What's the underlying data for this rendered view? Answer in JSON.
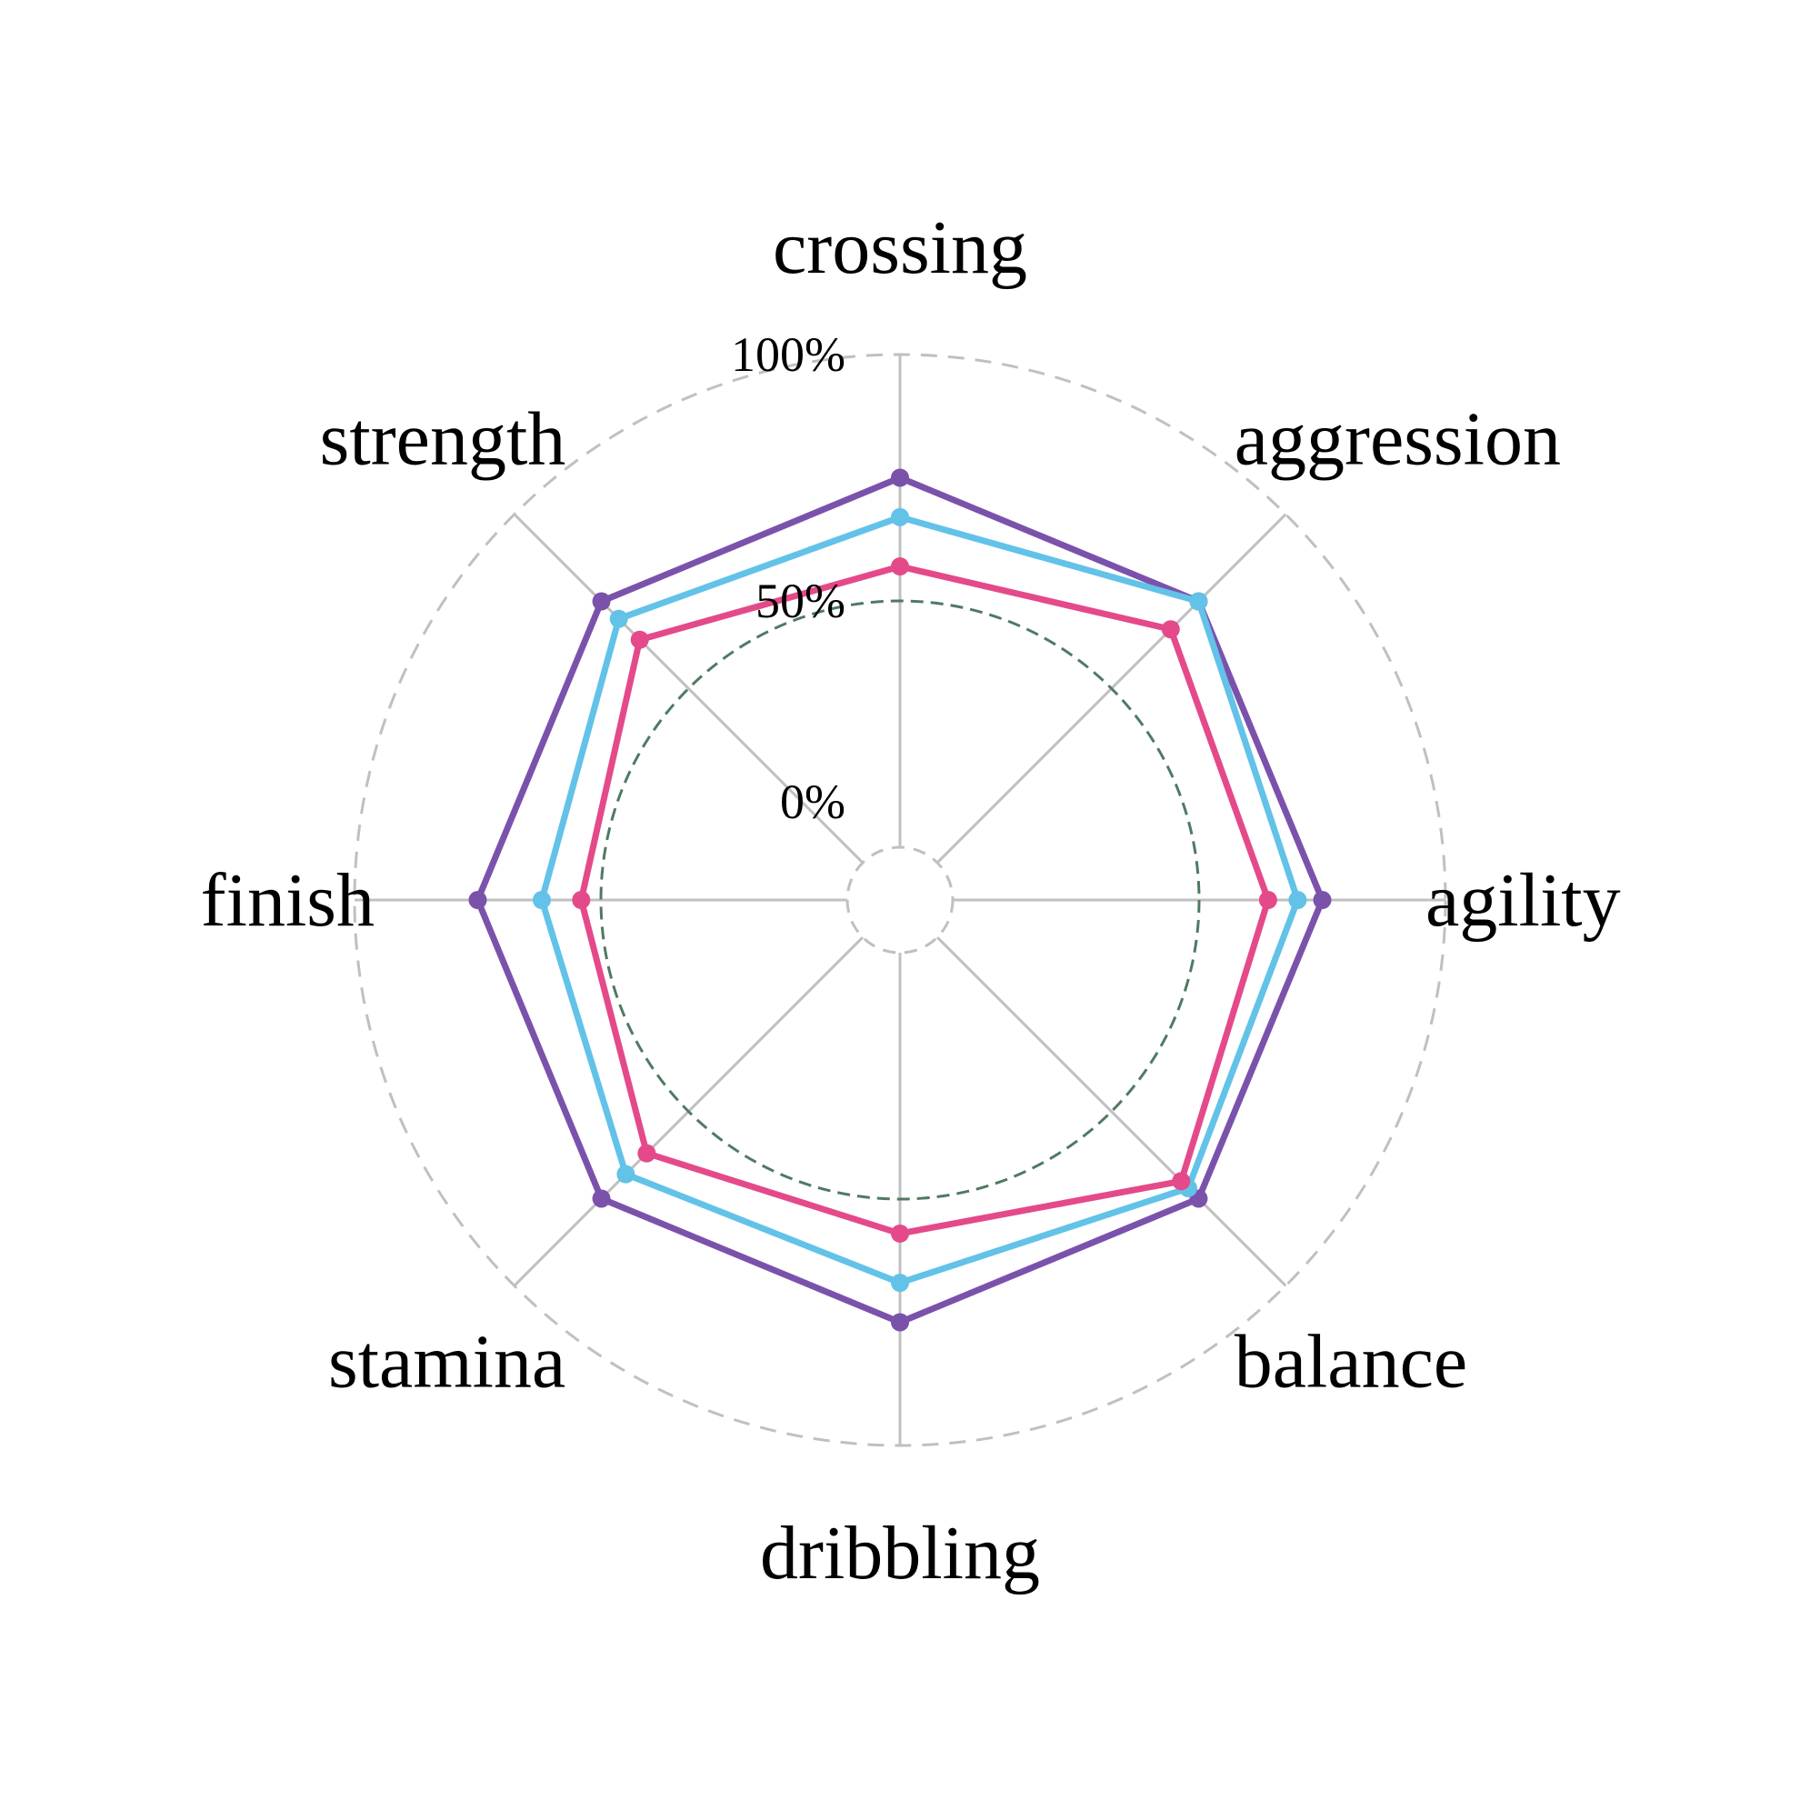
{
  "chart_data": {
    "type": "radar",
    "axes": [
      "crossing",
      "aggression",
      "agility",
      "balance",
      "dribbling",
      "stamina",
      "finish",
      "strength"
    ],
    "radial_ticks": [
      "0%",
      "50%",
      "100%"
    ],
    "rlim": [
      0,
      100
    ],
    "reference_ring": 50,
    "series": [
      {
        "color": "#7b52ab",
        "values": [
          75,
          75,
          75,
          75,
          75,
          75,
          75,
          75
        ]
      },
      {
        "color": "#62c2e8",
        "values": [
          67,
          75,
          70,
          72,
          67,
          68,
          62,
          70
        ]
      },
      {
        "color": "#e44a8a",
        "values": [
          57,
          67,
          64,
          70,
          57,
          62,
          54,
          64
        ]
      }
    ],
    "colors": {
      "grid": "#c0c0c0",
      "reference_ring": "#4f7a62"
    }
  }
}
